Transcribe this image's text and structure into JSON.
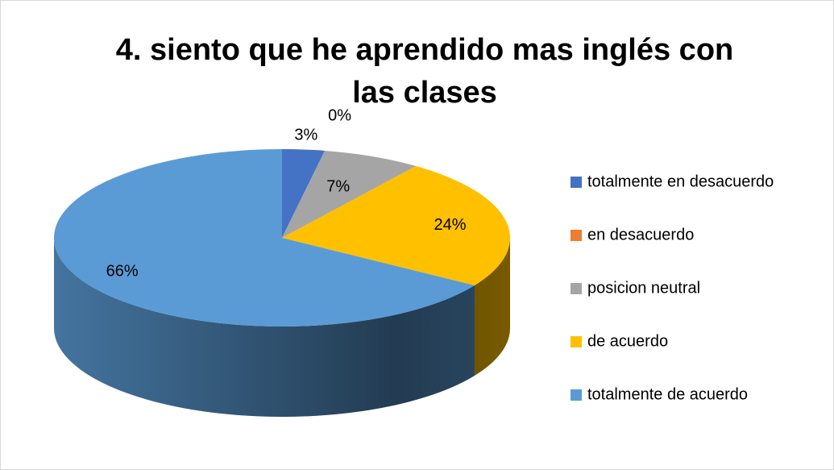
{
  "chart_data": {
    "type": "pie",
    "title": "4. siento que he aprendido mas inglés con las clases",
    "categories": [
      "totalmente en desacuerdo",
      "en desacuerdo",
      "posicion neutral",
      "de acuerdo",
      "totalmente de acuerdo"
    ],
    "values": [
      3,
      0,
      7,
      24,
      66
    ],
    "value_labels": [
      "3%",
      "0%",
      "7%",
      "24%",
      "66%"
    ],
    "colors": [
      "#4472c4",
      "#ed7d31",
      "#a5a5a5",
      "#ffc000",
      "#5b9bd5"
    ],
    "legend": "right"
  }
}
